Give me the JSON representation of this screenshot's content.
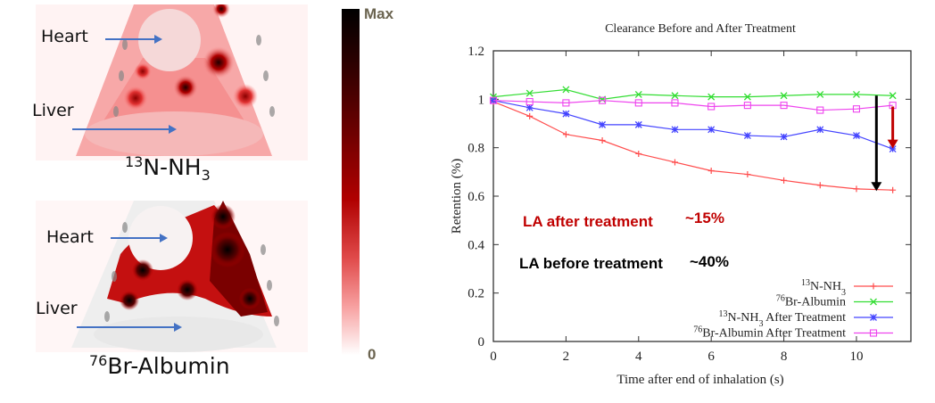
{
  "images": {
    "top": {
      "tracer_mass": "13",
      "tracer_name": "N-NH",
      "tracer_sub": "3",
      "labels": {
        "heart": "Heart",
        "liver": "Liver"
      }
    },
    "bottom": {
      "tracer_mass": "76",
      "tracer_name": "Br-Albumin",
      "labels": {
        "heart": "Heart",
        "liver": "Liver"
      }
    },
    "colorbar": {
      "max_label": "Max",
      "min_label": "0"
    }
  },
  "chart_data": {
    "type": "line",
    "title": "Clearance Before and After Treatment",
    "xlabel": "Time after end of inhalation (s)",
    "ylabel": "Retention (%)",
    "xlim": [
      0,
      11.5
    ],
    "ylim": [
      0,
      1.2
    ],
    "xticks": [
      0,
      2,
      4,
      6,
      8,
      10
    ],
    "yticks": [
      0,
      0.2,
      0.4,
      0.6,
      0.8,
      1,
      1.2
    ],
    "ytick_labels": [
      "0",
      "0.2",
      "0.4",
      "0.6",
      "0.8",
      "1",
      "1.2"
    ],
    "grid": false,
    "legend_position": "bottom-right",
    "x": [
      0,
      1,
      2,
      3,
      4,
      5,
      6,
      7,
      8,
      9,
      10,
      11
    ],
    "series": [
      {
        "name": "13N-NH3",
        "mass": "13",
        "base": "N-NH",
        "sub": "3",
        "suffix": "",
        "color": "#ff4d4d",
        "marker": "plus",
        "values": [
          0.99,
          0.93,
          0.855,
          0.83,
          0.775,
          0.74,
          0.705,
          0.69,
          0.665,
          0.645,
          0.63,
          0.625
        ]
      },
      {
        "name": "76Br-Albumin",
        "mass": "76",
        "base": "Br-Albumin",
        "sub": "",
        "suffix": "",
        "color": "#33dd33",
        "marker": "x",
        "values": [
          1.01,
          1.025,
          1.04,
          1.0,
          1.02,
          1.015,
          1.01,
          1.01,
          1.015,
          1.02,
          1.02,
          1.015
        ]
      },
      {
        "name": "13N-NH3 After Treatment",
        "mass": "13",
        "base": "N-NH",
        "sub": "3",
        "suffix": " After Treatment",
        "color": "#4444ff",
        "marker": "star",
        "values": [
          0.995,
          0.965,
          0.94,
          0.895,
          0.895,
          0.875,
          0.875,
          0.85,
          0.845,
          0.875,
          0.85,
          0.795
        ]
      },
      {
        "name": "76Br-Albumin After Treatment",
        "mass": "76",
        "base": "Br-Albumin",
        "sub": "",
        "suffix": " After Treatment",
        "color": "#ee44ee",
        "marker": "square",
        "values": [
          0.995,
          0.99,
          0.985,
          0.995,
          0.985,
          0.985,
          0.97,
          0.975,
          0.975,
          0.955,
          0.96,
          0.975
        ]
      }
    ],
    "annotations": [
      {
        "label": "LA after treatment",
        "value": "~15%",
        "color": "#c00000"
      },
      {
        "label": "LA before treatment",
        "value": "~40%",
        "color": "#000000"
      }
    ],
    "arrows": [
      {
        "color": "#000000",
        "x": 10.55,
        "from": 1.015,
        "to": 0.625
      },
      {
        "color": "#c00000",
        "x": 11,
        "from": 0.97,
        "to": 0.8
      }
    ]
  }
}
